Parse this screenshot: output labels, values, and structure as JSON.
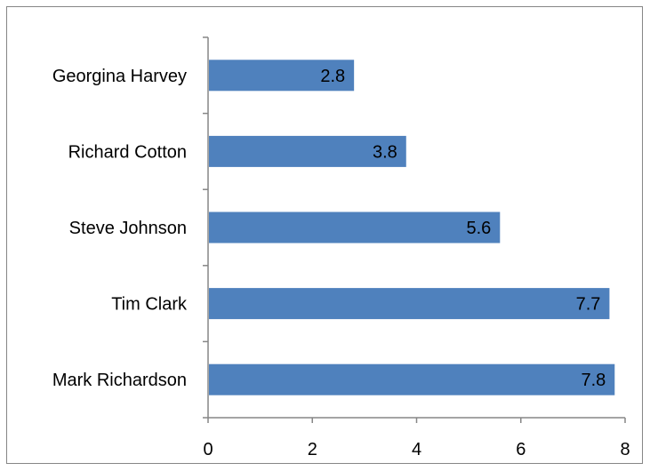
{
  "chart_data": {
    "type": "bar",
    "orientation": "horizontal",
    "categories": [
      "Georgina Harvey",
      "Richard Cotton",
      "Steve Johnson",
      "Tim Clark",
      "Mark Richardson"
    ],
    "values": [
      2.8,
      3.8,
      5.6,
      7.7,
      7.8
    ],
    "value_labels": [
      "2.8",
      "3.8",
      "5.6",
      "7.7",
      "7.8"
    ],
    "xlim": [
      0,
      8
    ],
    "x_ticks": [
      0,
      2,
      4,
      6,
      8
    ],
    "x_tick_labels": [
      "0",
      "2",
      "4",
      "6",
      "8"
    ],
    "title": "",
    "xlabel": "",
    "ylabel": "",
    "grid": false,
    "legend": "none",
    "colors": {
      "bar": "#4f81bd",
      "axis": "#868686",
      "text": "#000000"
    }
  }
}
